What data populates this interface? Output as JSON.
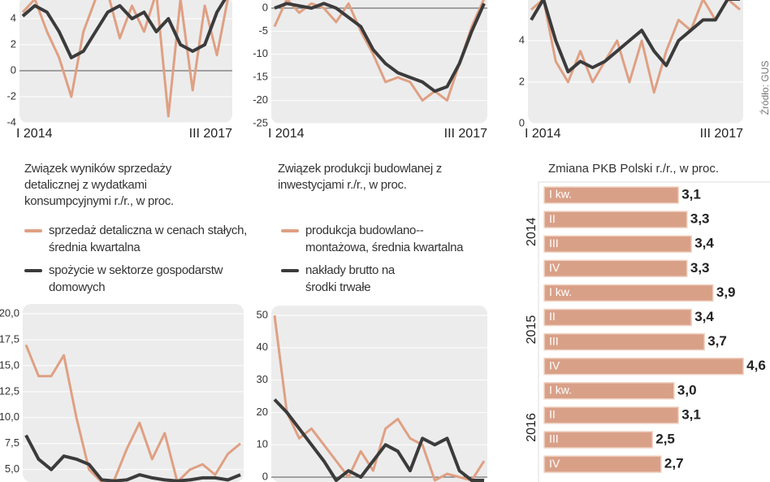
{
  "source": "Źródło: GUS",
  "chart_data": [
    {
      "type": "line",
      "categories": [
        "I 2014",
        null,
        null,
        null,
        null,
        null,
        null,
        null,
        null,
        null,
        null,
        null,
        null,
        null,
        null,
        null,
        null,
        "III 2017"
      ],
      "series": [
        {
          "color": "#dfa083",
          "values": [
            4.5,
            5.5,
            3,
            1,
            -2,
            3,
            5.5,
            6,
            2.5,
            5,
            3,
            6,
            -3.5,
            5.5,
            -1.5,
            5,
            1.2,
            6
          ]
        },
        {
          "color": "#3b3b3b",
          "values": [
            4.2,
            5,
            4.5,
            3,
            1,
            1.5,
            3,
            4.5,
            5,
            4,
            4.5,
            3,
            4,
            2,
            1.5,
            2,
            4.5,
            6
          ]
        }
      ],
      "ylim": [
        -4,
        5
      ],
      "yticks": [
        -4,
        -2,
        0,
        2,
        4
      ]
    },
    {
      "type": "line",
      "categories": [
        "I 2014",
        null,
        null,
        null,
        null,
        null,
        null,
        null,
        null,
        null,
        null,
        null,
        null,
        null,
        null,
        null,
        null,
        "III 2017"
      ],
      "series": [
        {
          "color": "#dfa083",
          "values": [
            -4,
            2,
            -1,
            1,
            0,
            -3,
            1,
            -5,
            -10,
            -16,
            -15,
            -16,
            -20,
            -18,
            -20,
            -12,
            -4,
            2
          ]
        },
        {
          "color": "#3b3b3b",
          "values": [
            0,
            1,
            0.5,
            0,
            1,
            0,
            -2,
            -4,
            -9,
            -12,
            -14,
            -15,
            -16,
            -18,
            -17,
            -12,
            -5,
            1
          ]
        }
      ],
      "ylim": [
        -25,
        1.5
      ],
      "yticks": [
        -25,
        -20,
        -15,
        -10,
        -5,
        0
      ]
    },
    {
      "type": "line",
      "categories": [
        "I 2014",
        null,
        null,
        null,
        null,
        null,
        null,
        null,
        null,
        null,
        null,
        null,
        null,
        null,
        null,
        null,
        null,
        "III 2017"
      ],
      "series": [
        {
          "color": "#dfa083",
          "values": [
            5.5,
            6,
            3,
            2,
            3.5,
            2,
            3,
            4,
            2,
            4,
            1.5,
            3.5,
            5,
            4.5,
            6,
            5,
            6,
            5.5
          ]
        },
        {
          "color": "#3b3b3b",
          "values": [
            5,
            6,
            4,
            2.5,
            3,
            2.7,
            3,
            3.5,
            4,
            4.5,
            3.5,
            2.8,
            4,
            4.5,
            5,
            5,
            6,
            6
          ]
        }
      ],
      "ylim": [
        0,
        6
      ],
      "yticks": [
        0,
        2,
        4
      ]
    },
    {
      "type": "line",
      "title": "Związek wyników sprzedaży detalicznej z wydatkami konsumpcyjnymi r./r., w proc.",
      "series": [
        {
          "name": "sprzedaż detaliczna w cenach stałych, średnia kwartalna",
          "color": "#dfa083",
          "values": [
            17,
            14,
            14,
            16,
            10,
            5,
            3.8,
            4,
            7,
            9.5,
            6,
            8.5,
            3.8,
            5,
            5.5,
            4.5,
            6.5,
            7.5
          ]
        },
        {
          "name": "spożycie w sektorze gospodarstw domowych",
          "color": "#3b3b3b",
          "values": [
            8.3,
            6,
            5,
            6.3,
            6,
            5.5,
            4,
            3.9,
            4,
            4.5,
            4.2,
            4,
            3.9,
            4,
            4.2,
            4.2,
            4,
            4.5
          ]
        }
      ],
      "ylim": [
        3.8,
        20
      ],
      "yticks": [
        {
          "value": 5,
          "label": "5,0"
        },
        {
          "value": 7.5,
          "label": "7,5"
        },
        {
          "value": 10,
          "label": "10,0"
        },
        {
          "value": 12.5,
          "label": "12,5"
        },
        {
          "value": 15,
          "label": "15,0"
        },
        {
          "value": 17.5,
          "label": "17,5"
        },
        {
          "value": 20,
          "label": "20,0"
        }
      ]
    },
    {
      "type": "line",
      "title": "Związek produkcji budowlanej z inwestycjami r./r., w proc.",
      "series": [
        {
          "name": "produkcja budowlano--montażowa, średnia kwartalna",
          "color": "#dfa083",
          "values": [
            50,
            20,
            12,
            15,
            10,
            5,
            0,
            8,
            2,
            15,
            18,
            12,
            10,
            -1,
            1,
            0,
            -1,
            5
          ]
        },
        {
          "name": "nakłady brutto na środki trwałe",
          "color": "#3b3b3b",
          "values": [
            24,
            20,
            15,
            10,
            5,
            -1,
            2,
            0,
            5,
            10,
            8,
            2,
            12,
            10,
            12,
            2,
            -1,
            -1
          ]
        }
      ],
      "ylim": [
        -1.5,
        50
      ],
      "yticks": [
        0,
        10,
        20,
        30,
        40,
        50
      ]
    },
    {
      "type": "hbar",
      "title": "Zmiana PKB Polski r./r., w proc.",
      "color": "#d9a088",
      "categories": [
        "I kw.",
        "II",
        "III",
        "IV",
        "I kw.",
        "II",
        "III",
        "IV",
        "I kw.",
        "II",
        "III",
        "IV"
      ],
      "years": [
        "2014",
        "2015",
        "2016"
      ],
      "values": [
        3.1,
        3.3,
        3.4,
        3.3,
        3.9,
        3.4,
        3.7,
        4.6,
        3.0,
        3.1,
        2.5,
        2.7
      ],
      "value_labels": [
        "3,1",
        "3,3",
        "3,4",
        "3,3",
        "3,9",
        "3,4",
        "3,7",
        "4,6",
        "3,0",
        "3,1",
        "2,5",
        "2,7"
      ],
      "xlim": [
        0,
        5
      ]
    }
  ]
}
